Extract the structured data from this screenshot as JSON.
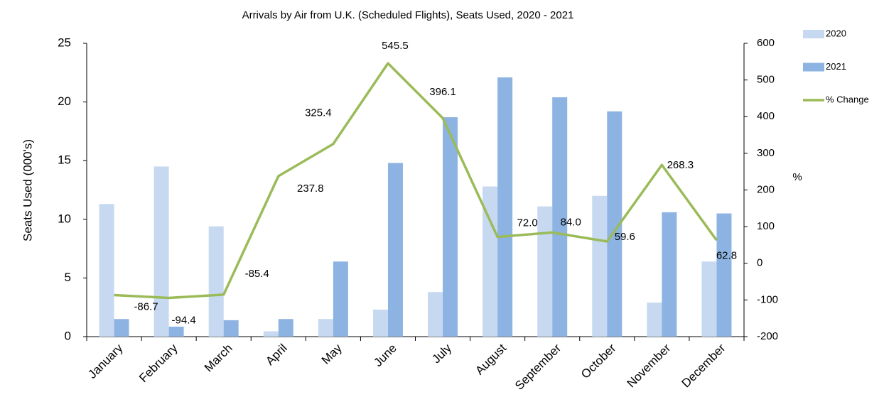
{
  "chart_data": {
    "type": "bar_line",
    "title": "Arrivals by Air from U.K. (Scheduled Flights), Seats Used, 2020 - 2021",
    "y_label": "Seats Used (000's)",
    "y2_label": "%",
    "categories": [
      "January",
      "February",
      "March",
      "April",
      "May",
      "June",
      "July",
      "August",
      "September",
      "October",
      "November",
      "December"
    ],
    "series": [
      {
        "name": "2020",
        "type": "bar",
        "color": "#c6d9f1",
        "values": [
          11.3,
          14.5,
          9.4,
          0.45,
          1.5,
          2.3,
          3.8,
          12.8,
          11.1,
          12.0,
          2.9,
          6.4
        ]
      },
      {
        "name": "2021",
        "type": "bar",
        "color": "#8db3e2",
        "values": [
          1.5,
          0.85,
          1.4,
          1.5,
          6.4,
          14.8,
          18.7,
          22.1,
          20.4,
          19.2,
          10.6,
          10.5
        ]
      },
      {
        "name": "% Change",
        "type": "line",
        "axis": "y2",
        "color": "#9bbb59",
        "values": [
          -86.7,
          -94.4,
          -85.4,
          237.8,
          325.4,
          545.5,
          396.1,
          72.0,
          84.0,
          59.6,
          268.3,
          62.8
        ],
        "value_labels": [
          "-86.7",
          "-94.4",
          "-85.4",
          "237.8",
          "325.4",
          "545.5",
          "396.1",
          "72.0",
          "84.0",
          "59.6",
          "268.3",
          "62.8"
        ]
      }
    ],
    "ylim": [
      0,
      25
    ],
    "yticks": [
      0,
      5,
      10,
      15,
      20,
      25
    ],
    "y2lim": [
      -200,
      600
    ],
    "y2ticks": [
      -200,
      -100,
      0,
      100,
      200,
      300,
      400,
      500,
      600
    ],
    "grid": false,
    "legend": "right"
  }
}
